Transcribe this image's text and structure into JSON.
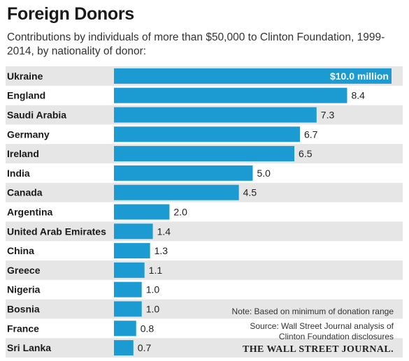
{
  "title": "Foreign Donors",
  "subtitle": "Contributions by individuals of more than $50,000 to Clinton Foundation, 1999-2014, by nationality of donor:",
  "note": "Note: Based on minimum of donation range",
  "source": "Source: Wall Street Journal analysis of Clinton Foundation disclosures",
  "masthead": "THE WALL STREET JOURNAL.",
  "colors": {
    "bar": "#1b9bd1",
    "row_stripe": "#e6e6e6",
    "highlight_label": "#ffffff"
  },
  "chart_data": {
    "type": "bar",
    "orientation": "horizontal",
    "title": "Foreign Donors",
    "unit": "$ million",
    "categories": [
      "Ukraine",
      "England",
      "Saudi Arabia",
      "Germany",
      "Ireland",
      "India",
      "Canada",
      "Argentina",
      "United Arab Emirates",
      "China",
      "Greece",
      "Nigeria",
      "Bosnia",
      "France",
      "Sri Lanka"
    ],
    "values": [
      10.0,
      8.4,
      7.3,
      6.7,
      6.5,
      5.0,
      4.5,
      2.0,
      1.4,
      1.3,
      1.1,
      1.0,
      1.0,
      0.8,
      0.7
    ],
    "value_labels": [
      "$10.0 million",
      "8.4",
      "7.3",
      "6.7",
      "6.5",
      "5.0",
      "4.5",
      "2.0",
      "1.4",
      "1.3",
      "1.1",
      "1.0",
      "1.0",
      "0.8",
      "0.7"
    ],
    "xlim": [
      0,
      10
    ],
    "grid": false,
    "legend": "none"
  }
}
